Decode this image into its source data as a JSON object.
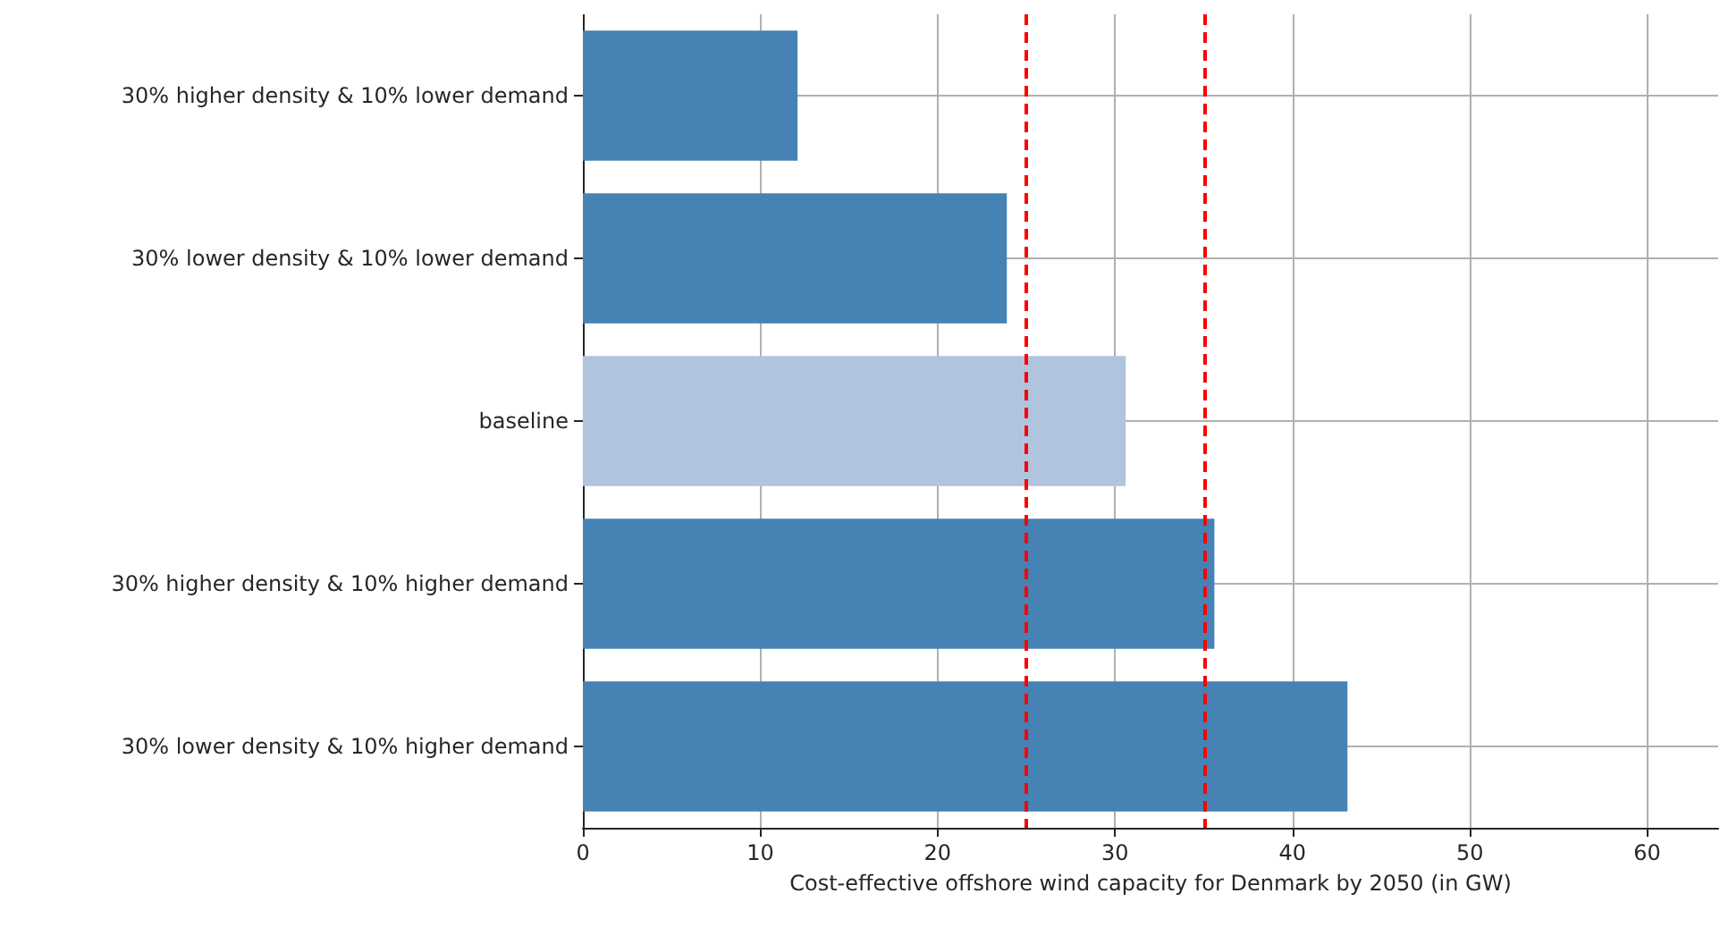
{
  "chart_data": {
    "type": "bar",
    "orientation": "horizontal",
    "xlabel": "Cost-effective offshore wind capacity for Denmark by 2050 (in GW)",
    "categories": [
      "30% higher density & 10% lower demand",
      "30% lower density & 10% lower demand",
      "baseline",
      "30% higher density & 10% higher demand",
      "30% lower density & 10% higher demand"
    ],
    "values": [
      12.1,
      23.9,
      30.6,
      35.6,
      43.1
    ],
    "colors": [
      "#4682b4",
      "#4682b4",
      "#b0c4de",
      "#4682b4",
      "#4682b4"
    ],
    "xlim": [
      0,
      64
    ],
    "xticks": [
      0,
      10,
      20,
      30,
      40,
      50,
      60
    ],
    "grid": true,
    "ref_lines": [
      {
        "axis": "x",
        "value": 25,
        "color": "#ff0000",
        "line_style": "dashed"
      },
      {
        "axis": "x",
        "value": 35,
        "color": "#ff0000",
        "line_style": "dashed"
      }
    ]
  }
}
